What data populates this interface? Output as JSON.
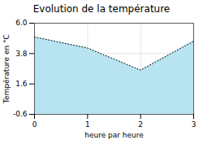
{
  "chart_data": {
    "type": "area",
    "title": "Evolution de la température",
    "x": [
      0,
      1,
      2,
      3
    ],
    "values": [
      5.0,
      4.2,
      2.6,
      4.7
    ],
    "xlabel": "heure par heure",
    "ylabel": "Température en °C",
    "xlim": [
      0,
      3
    ],
    "ylim": [
      -0.6,
      6.0
    ],
    "xticks": [
      0,
      1,
      2,
      3
    ],
    "yticks": [
      -0.6,
      1.6,
      3.8,
      {
        "value": 6.0,
        "label": "6.0"
      }
    ],
    "color": "#b8e4f2",
    "line_style": "dotted",
    "grid": true
  }
}
